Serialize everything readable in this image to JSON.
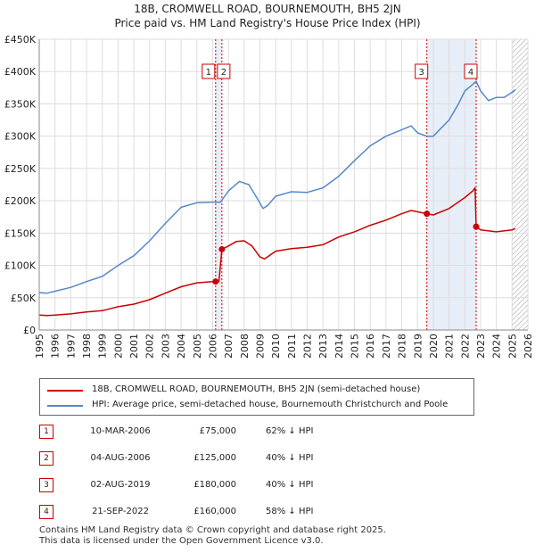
{
  "colors": {
    "property": "#cc0000",
    "hpi": "#5588cc",
    "shade": "#e8eef8",
    "grid": "#dddddd",
    "marker_line": "#cc0000"
  },
  "chart_data": {
    "type": "line",
    "title": "18B, CROMWELL ROAD, BOURNEMOUTH, BH5 2JN",
    "subtitle": "Price paid vs. HM Land Registry's House Price Index (HPI)",
    "xlim": [
      1995,
      2026
    ],
    "ylim": [
      0,
      450000
    ],
    "y_ticks": [
      0,
      50000,
      100000,
      150000,
      200000,
      250000,
      300000,
      350000,
      400000,
      450000
    ],
    "y_tick_labels": [
      "£0",
      "£50K",
      "£100K",
      "£150K",
      "£200K",
      "£250K",
      "£300K",
      "£350K",
      "£400K",
      "£450K"
    ],
    "x_ticks": [
      1995,
      1996,
      1997,
      1998,
      1999,
      2000,
      2001,
      2002,
      2003,
      2004,
      2005,
      2006,
      2007,
      2008,
      2009,
      2010,
      2011,
      2012,
      2013,
      2014,
      2015,
      2016,
      2017,
      2018,
      2019,
      2020,
      2021,
      2022,
      2023,
      2024,
      2025,
      2026
    ],
    "x_tick_labels": [
      "1995",
      "1996",
      "1997",
      "1998",
      "1999",
      "2000",
      "2001",
      "2002",
      "2003",
      "2004",
      "2005",
      "2006",
      "2007",
      "2008",
      "2009",
      "2010",
      "2011",
      "2012",
      "2013",
      "2014",
      "2015",
      "2016",
      "2017",
      "2018",
      "2019",
      "2020",
      "2021",
      "2022",
      "2023",
      "2024",
      "2025",
      "2026"
    ],
    "shaded_ranges": [
      [
        2006.19,
        2006.59
      ],
      [
        2019.59,
        2022.72
      ]
    ],
    "hatched_from": 2025.0,
    "series": [
      {
        "name": "18B, CROMWELL ROAD, BOURNEMOUTH, BH5 2JN (semi-detached house)",
        "x": [
          1995.0,
          1995.5,
          1996.0,
          1997.0,
          1998.0,
          1999.0,
          2000.0,
          2001.0,
          2002.0,
          2003.0,
          2004.0,
          2005.0,
          2006.0,
          2006.19,
          2006.4,
          2006.59,
          2007.0,
          2007.5,
          2008.0,
          2008.5,
          2009.0,
          2009.3,
          2010.0,
          2011.0,
          2012.0,
          2013.0,
          2014.0,
          2015.0,
          2016.0,
          2017.0,
          2018.0,
          2018.6,
          2019.59,
          2020.0,
          2021.0,
          2022.0,
          2022.5,
          2022.65,
          2022.72,
          2023.0,
          2024.0,
          2025.0,
          2025.2
        ],
        "values": [
          23000,
          22500,
          23000,
          25000,
          28000,
          30000,
          36000,
          40000,
          47000,
          57000,
          67000,
          73000,
          75000,
          75000,
          75000,
          125000,
          130000,
          137000,
          138000,
          130000,
          113000,
          110000,
          122000,
          126000,
          128000,
          132000,
          144000,
          152000,
          162000,
          170000,
          180000,
          185000,
          180000,
          178000,
          188000,
          205000,
          215000,
          220000,
          160000,
          155000,
          152000,
          155000,
          157000
        ]
      },
      {
        "name": "HPI: Average price, semi-detached house, Bournemouth Christchurch and Poole",
        "x": [
          1995.0,
          1995.5,
          1996.0,
          1997.0,
          1998.0,
          1999.0,
          2000.0,
          2001.0,
          2002.0,
          2003.0,
          2004.0,
          2005.0,
          2006.0,
          2006.5,
          2007.0,
          2007.7,
          2008.3,
          2008.8,
          2009.2,
          2009.5,
          2010.0,
          2011.0,
          2012.0,
          2013.0,
          2014.0,
          2015.0,
          2016.0,
          2017.0,
          2018.0,
          2018.6,
          2019.0,
          2019.59,
          2020.0,
          2021.0,
          2021.6,
          2022.0,
          2022.5,
          2022.72,
          2023.0,
          2023.5,
          2024.0,
          2024.5,
          2025.0,
          2025.2
        ],
        "values": [
          58000,
          57000,
          60000,
          66000,
          75000,
          83000,
          100000,
          115000,
          138000,
          165000,
          190000,
          197000,
          198000,
          198000,
          215000,
          230000,
          225000,
          205000,
          188000,
          193000,
          207000,
          214000,
          213000,
          220000,
          238000,
          262000,
          285000,
          300000,
          310000,
          316000,
          305000,
          300000,
          300000,
          325000,
          350000,
          370000,
          380000,
          385000,
          370000,
          355000,
          360000,
          360000,
          368000,
          372000
        ]
      }
    ],
    "markers": [
      {
        "label": "1",
        "x": 2006.19,
        "value": 75000
      },
      {
        "label": "2",
        "x": 2006.59,
        "value": 125000
      },
      {
        "label": "3",
        "x": 2019.59,
        "value": 180000
      },
      {
        "label": "4",
        "x": 2022.72,
        "value": 160000
      }
    ]
  },
  "legend": [
    {
      "label": "18B, CROMWELL ROAD, BOURNEMOUTH, BH5 2JN (semi-detached house)"
    },
    {
      "label": "HPI: Average price, semi-detached house, Bournemouth Christchurch and Poole"
    }
  ],
  "sales": [
    {
      "num": "1",
      "date": "10-MAR-2006",
      "price": "£75,000",
      "hpi": "62% ↓ HPI"
    },
    {
      "num": "2",
      "date": "04-AUG-2006",
      "price": "£125,000",
      "hpi": "40% ↓ HPI"
    },
    {
      "num": "3",
      "date": "02-AUG-2019",
      "price": "£180,000",
      "hpi": "40% ↓ HPI"
    },
    {
      "num": "4",
      "date": "21-SEP-2022",
      "price": "£160,000",
      "hpi": "58% ↓ HPI"
    }
  ],
  "footer": {
    "line1": "Contains HM Land Registry data © Crown copyright and database right 2025.",
    "line2": "This data is licensed under the Open Government Licence v3.0."
  }
}
